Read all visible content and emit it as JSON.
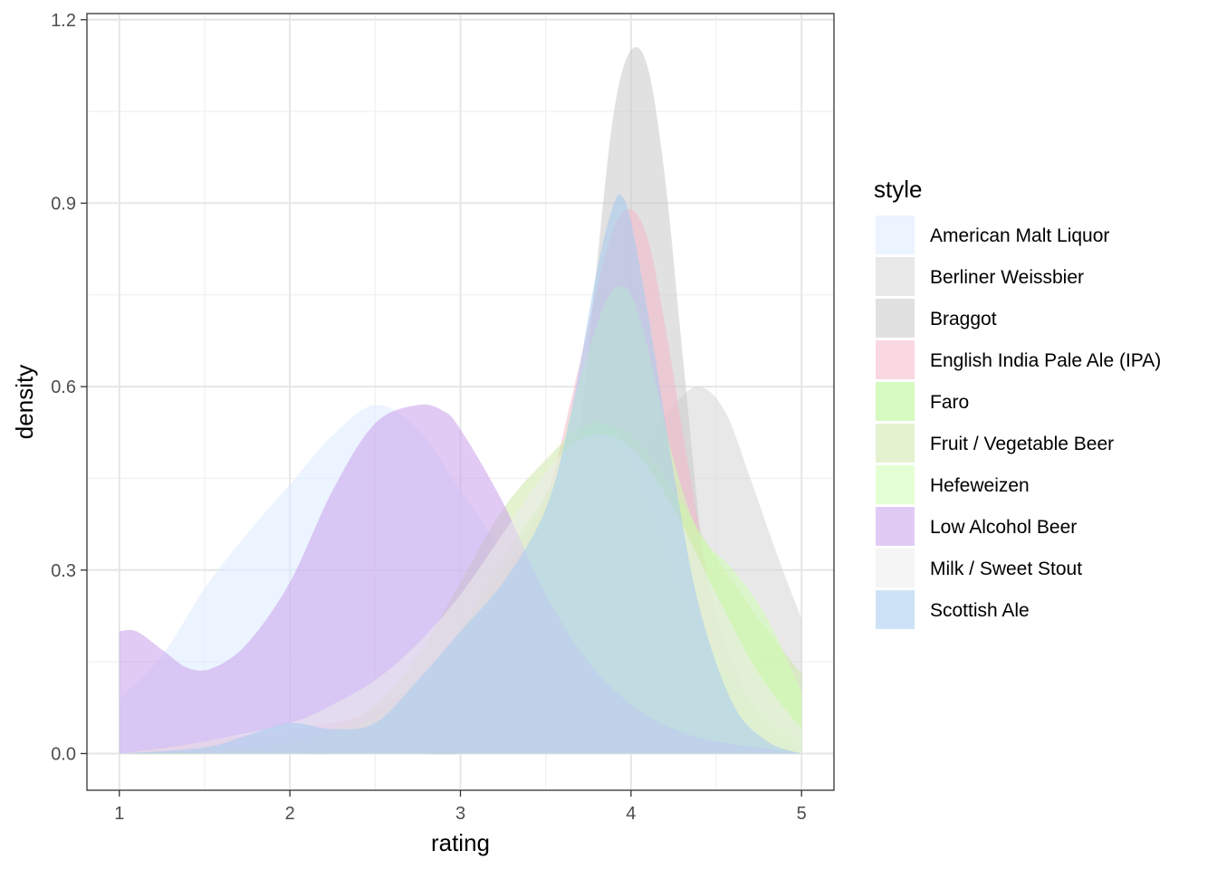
{
  "chart_data": {
    "type": "area",
    "xlabel": "rating",
    "ylabel": "density",
    "xlim": [
      0.81,
      5.19
    ],
    "ylim": [
      -0.06,
      1.21
    ],
    "x_ticks": [
      1,
      2,
      3,
      4,
      5
    ],
    "x_tick_labels": [
      "1",
      "2",
      "3",
      "4",
      "5"
    ],
    "y_ticks": [
      0,
      0.3,
      0.6,
      0.9,
      1.2
    ],
    "y_tick_labels": [
      "0.0",
      "0.3",
      "0.6",
      "0.9",
      "1.2"
    ],
    "grid": true,
    "legend_title": "style",
    "legend_position": "right",
    "fill_opacity": 0.55,
    "series": [
      {
        "name": "American Malt Liquor",
        "color": "#DCEBFF",
        "x": [
          1.0,
          1.25,
          1.5,
          1.75,
          2.0,
          2.25,
          2.5,
          2.75,
          3.0,
          3.25,
          3.5,
          3.75,
          4.0,
          4.25,
          4.5,
          4.75,
          5.0
        ],
        "y": [
          0.09,
          0.16,
          0.27,
          0.36,
          0.44,
          0.52,
          0.57,
          0.53,
          0.43,
          0.33,
          0.22,
          0.13,
          0.08,
          0.06,
          0.05,
          0.04,
          0.04
        ]
      },
      {
        "name": "Berliner Weissbier",
        "color": "#D6D6D6",
        "x": [
          1.0,
          1.25,
          1.5,
          1.75,
          2.0,
          2.25,
          2.5,
          2.75,
          3.0,
          3.25,
          3.5,
          3.75,
          3.9,
          4.0,
          4.1,
          4.25,
          4.4,
          4.55,
          4.7,
          4.85,
          5.0
        ],
        "y": [
          0.0,
          0.0,
          0.0,
          0.0,
          0.0,
          0.0,
          0.01,
          0.04,
          0.12,
          0.22,
          0.3,
          0.38,
          0.44,
          0.47,
          0.51,
          0.57,
          0.6,
          0.56,
          0.45,
          0.33,
          0.22
        ]
      },
      {
        "name": "Braggot",
        "color": "#C8C8C8",
        "x": [
          1.0,
          1.25,
          1.5,
          1.75,
          2.0,
          2.25,
          2.5,
          2.75,
          3.0,
          3.25,
          3.5,
          3.6,
          3.7,
          3.8,
          3.9,
          4.0,
          4.1,
          4.2,
          4.3,
          4.4,
          4.5,
          4.6,
          4.75,
          5.0
        ],
        "y": [
          0.0,
          0.0,
          0.0,
          0.0,
          0.0,
          0.0,
          0.0,
          0.0,
          0.0,
          0.02,
          0.12,
          0.28,
          0.52,
          0.8,
          1.05,
          1.15,
          1.12,
          0.94,
          0.66,
          0.38,
          0.17,
          0.06,
          0.01,
          0.0
        ]
      },
      {
        "name": "English India Pale Ale (IPA)",
        "color": "#F4B8CB",
        "x": [
          1.0,
          1.5,
          2.0,
          2.25,
          2.5,
          2.75,
          3.0,
          3.25,
          3.5,
          3.65,
          3.8,
          3.9,
          4.0,
          4.1,
          4.2,
          4.35,
          4.5,
          4.75,
          5.0
        ],
        "y": [
          0.0,
          0.02,
          0.04,
          0.05,
          0.07,
          0.12,
          0.2,
          0.3,
          0.42,
          0.58,
          0.76,
          0.86,
          0.89,
          0.84,
          0.7,
          0.45,
          0.23,
          0.06,
          0.01
        ]
      },
      {
        "name": "Faro",
        "color": "#B5F58A",
        "x": [
          1.0,
          1.5,
          2.0,
          2.25,
          2.5,
          2.75,
          3.0,
          3.25,
          3.5,
          3.6,
          3.7,
          3.8,
          3.9,
          4.0,
          4.1,
          4.25,
          4.5,
          4.75,
          5.0
        ],
        "y": [
          0.0,
          0.0,
          0.01,
          0.02,
          0.04,
          0.09,
          0.2,
          0.32,
          0.42,
          0.47,
          0.52,
          0.54,
          0.53,
          0.49,
          0.42,
          0.3,
          0.16,
          0.07,
          0.02
        ]
      },
      {
        "name": "Fruit / Vegetable Beer",
        "color": "#CDE8A9",
        "x": [
          1.0,
          1.25,
          1.5,
          1.75,
          2.0,
          2.25,
          2.5,
          2.75,
          3.0,
          3.25,
          3.5,
          3.75,
          4.0,
          4.25,
          4.5,
          4.75,
          5.0
        ],
        "y": [
          0.0,
          0.0,
          0.01,
          0.01,
          0.02,
          0.04,
          0.08,
          0.16,
          0.28,
          0.4,
          0.48,
          0.54,
          0.52,
          0.43,
          0.32,
          0.22,
          0.13
        ]
      },
      {
        "name": "Hefeweizen",
        "color": "#D0FFB0",
        "x": [
          1.0,
          1.5,
          2.0,
          2.5,
          2.75,
          3.0,
          3.25,
          3.5,
          3.65,
          3.8,
          3.9,
          4.0,
          4.1,
          4.25,
          4.4,
          4.6,
          4.8,
          5.0
        ],
        "y": [
          0.0,
          0.0,
          0.01,
          0.06,
          0.12,
          0.2,
          0.28,
          0.4,
          0.56,
          0.7,
          0.76,
          0.75,
          0.66,
          0.48,
          0.36,
          0.3,
          0.22,
          0.1
        ]
      },
      {
        "name": "Low Alcohol Beer",
        "color": "#C9A0EB",
        "x": [
          1.0,
          1.1,
          1.25,
          1.4,
          1.55,
          1.75,
          2.0,
          2.25,
          2.5,
          2.75,
          2.9,
          3.0,
          3.25,
          3.5,
          3.75,
          4.0,
          4.25,
          4.5,
          4.75,
          5.0
        ],
        "y": [
          0.2,
          0.2,
          0.17,
          0.14,
          0.14,
          0.18,
          0.28,
          0.43,
          0.54,
          0.57,
          0.56,
          0.53,
          0.41,
          0.26,
          0.15,
          0.08,
          0.04,
          0.02,
          0.01,
          0.0
        ]
      },
      {
        "name": "Milk / Sweet Stout",
        "color": "#EDEDED",
        "x": [
          1.0,
          1.5,
          2.0,
          2.25,
          2.5,
          2.75,
          3.0,
          3.25,
          3.5,
          3.75,
          4.0,
          4.25,
          4.5,
          4.75,
          5.0
        ],
        "y": [
          0.0,
          0.02,
          0.05,
          0.08,
          0.12,
          0.18,
          0.26,
          0.36,
          0.46,
          0.52,
          0.5,
          0.4,
          0.26,
          0.13,
          0.04
        ]
      },
      {
        "name": "Scottish Ale",
        "color": "#A6CBF0",
        "x": [
          1.0,
          1.5,
          1.75,
          2.0,
          2.25,
          2.5,
          2.75,
          3.0,
          3.25,
          3.5,
          3.65,
          3.8,
          3.9,
          3.95,
          4.0,
          4.1,
          4.25,
          4.4,
          4.6,
          4.8,
          5.0
        ],
        "y": [
          0.0,
          0.01,
          0.03,
          0.05,
          0.04,
          0.05,
          0.12,
          0.2,
          0.28,
          0.4,
          0.56,
          0.79,
          0.9,
          0.91,
          0.87,
          0.72,
          0.46,
          0.24,
          0.08,
          0.02,
          0.0
        ]
      }
    ]
  }
}
